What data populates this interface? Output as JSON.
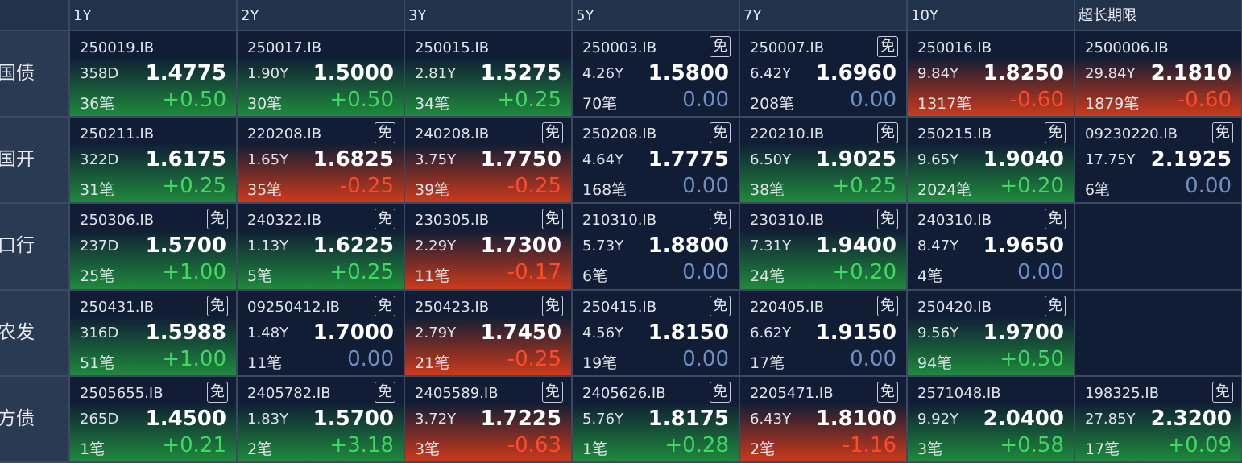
{
  "columns": [
    "1Y",
    "2Y",
    "3Y",
    "5Y",
    "7Y",
    "10Y",
    "超长期限"
  ],
  "rows": [
    {
      "name": "国债",
      "cells": [
        {
          "code": "250019.IB",
          "tenor": "358D",
          "yield": "1.4775",
          "count": "36笔",
          "change": "+0.50"
        },
        {
          "code": "250017.IB",
          "tenor": "1.90Y",
          "yield": "1.5000",
          "count": "30笔",
          "change": "+0.50"
        },
        {
          "code": "250015.IB",
          "tenor": "2.81Y",
          "yield": "1.5275",
          "count": "34笔",
          "change": "+0.25"
        },
        {
          "code": "250003.IB",
          "tag": "免",
          "tenor": "4.26Y",
          "yield": "1.5800",
          "count": "70笔",
          "change": "0.00"
        },
        {
          "code": "250007.IB",
          "tag": "免",
          "tenor": "6.42Y",
          "yield": "1.6960",
          "count": "208笔",
          "change": "0.00"
        },
        {
          "code": "250016.IB",
          "tenor": "9.84Y",
          "yield": "1.8250",
          "count": "1317笔",
          "change": "-0.60"
        },
        {
          "code": "2500006.IB",
          "tenor": "29.84Y",
          "yield": "2.1810",
          "count": "1879笔",
          "change": "-0.60"
        }
      ]
    },
    {
      "name": "国开",
      "cells": [
        {
          "code": "250211.IB",
          "tenor": "322D",
          "yield": "1.6175",
          "count": "31笔",
          "change": "+0.25"
        },
        {
          "code": "220208.IB",
          "tag": "免",
          "tenor": "1.65Y",
          "yield": "1.6825",
          "count": "35笔",
          "change": "-0.25"
        },
        {
          "code": "240208.IB",
          "tag": "免",
          "tenor": "3.75Y",
          "yield": "1.7750",
          "count": "39笔",
          "change": "-0.25"
        },
        {
          "code": "250208.IB",
          "tag": "免",
          "tenor": "4.64Y",
          "yield": "1.7775",
          "count": "168笔",
          "change": "0.00"
        },
        {
          "code": "220210.IB",
          "tag": "免",
          "tenor": "6.50Y",
          "yield": "1.9025",
          "count": "38笔",
          "change": "+0.25"
        },
        {
          "code": "250215.IB",
          "tag": "免",
          "tenor": "9.65Y",
          "yield": "1.9040",
          "count": "2024笔",
          "change": "+0.20"
        },
        {
          "code": "09230220.IB",
          "tag": "免",
          "tenor": "17.75Y",
          "yield": "2.1925",
          "count": "6笔",
          "change": "0.00"
        }
      ]
    },
    {
      "name": "进出口行",
      "cells": [
        {
          "code": "250306.IB",
          "tag": "免",
          "tenor": "237D",
          "yield": "1.5700",
          "count": "25笔",
          "change": "+1.00"
        },
        {
          "code": "240322.IB",
          "tag": "免",
          "tenor": "1.13Y",
          "yield": "1.6225",
          "count": "5笔",
          "change": "+0.25"
        },
        {
          "code": "230305.IB",
          "tag": "免",
          "tenor": "2.29Y",
          "yield": "1.7300",
          "count": "11笔",
          "change": "-0.17"
        },
        {
          "code": "210310.IB",
          "tag": "免",
          "tenor": "5.73Y",
          "yield": "1.8800",
          "count": "6笔",
          "change": "0.00"
        },
        {
          "code": "230310.IB",
          "tag": "免",
          "tenor": "7.31Y",
          "yield": "1.9400",
          "count": "24笔",
          "change": "+0.20"
        },
        {
          "code": "240310.IB",
          "tag": "免",
          "tenor": "8.47Y",
          "yield": "1.9650",
          "count": "4笔",
          "change": "0.00"
        },
        null
      ]
    },
    {
      "name": "农发",
      "cells": [
        {
          "code": "250431.IB",
          "tag": "免",
          "tenor": "316D",
          "yield": "1.5988",
          "count": "51笔",
          "change": "+1.00"
        },
        {
          "code": "09250412.IB",
          "tag": "免",
          "tenor": "1.48Y",
          "yield": "1.7000",
          "count": "11笔",
          "change": "0.00"
        },
        {
          "code": "250423.IB",
          "tag": "免",
          "tenor": "2.79Y",
          "yield": "1.7450",
          "count": "21笔",
          "change": "-0.25"
        },
        {
          "code": "250415.IB",
          "tag": "免",
          "tenor": "4.56Y",
          "yield": "1.8150",
          "count": "19笔",
          "change": "0.00"
        },
        {
          "code": "220405.IB",
          "tag": "免",
          "tenor": "6.62Y",
          "yield": "1.9150",
          "count": "17笔",
          "change": "0.00"
        },
        {
          "code": "250420.IB",
          "tag": "免",
          "tenor": "9.56Y",
          "yield": "1.9700",
          "count": "94笔",
          "change": "+0.50"
        },
        null
      ]
    },
    {
      "name": "地方债",
      "cells": [
        {
          "code": "2505655.IB",
          "tag": "免",
          "tenor": "265D",
          "yield": "1.4500",
          "count": "1笔",
          "change": "+0.21"
        },
        {
          "code": "2405782.IB",
          "tag": "免",
          "tenor": "1.83Y",
          "yield": "1.5700",
          "count": "2笔",
          "change": "+3.18"
        },
        {
          "code": "2405589.IB",
          "tag": "免",
          "tenor": "3.72Y",
          "yield": "1.7225",
          "count": "3笔",
          "change": "-0.63"
        },
        {
          "code": "2405626.IB",
          "tag": "免",
          "tenor": "5.76Y",
          "yield": "1.8175",
          "count": "1笔",
          "change": "+0.28"
        },
        {
          "code": "2205471.IB",
          "tag": "免",
          "tenor": "6.43Y",
          "yield": "1.8100",
          "count": "2笔",
          "change": "-1.16"
        },
        {
          "code": "2571048.IB",
          "tenor": "9.92Y",
          "yield": "2.0400",
          "count": "3笔",
          "change": "+0.58"
        },
        {
          "code": "198325.IB",
          "tag": "免",
          "tenor": "27.85Y",
          "yield": "2.3200",
          "count": "17笔",
          "change": "+0.09"
        }
      ]
    }
  ]
}
